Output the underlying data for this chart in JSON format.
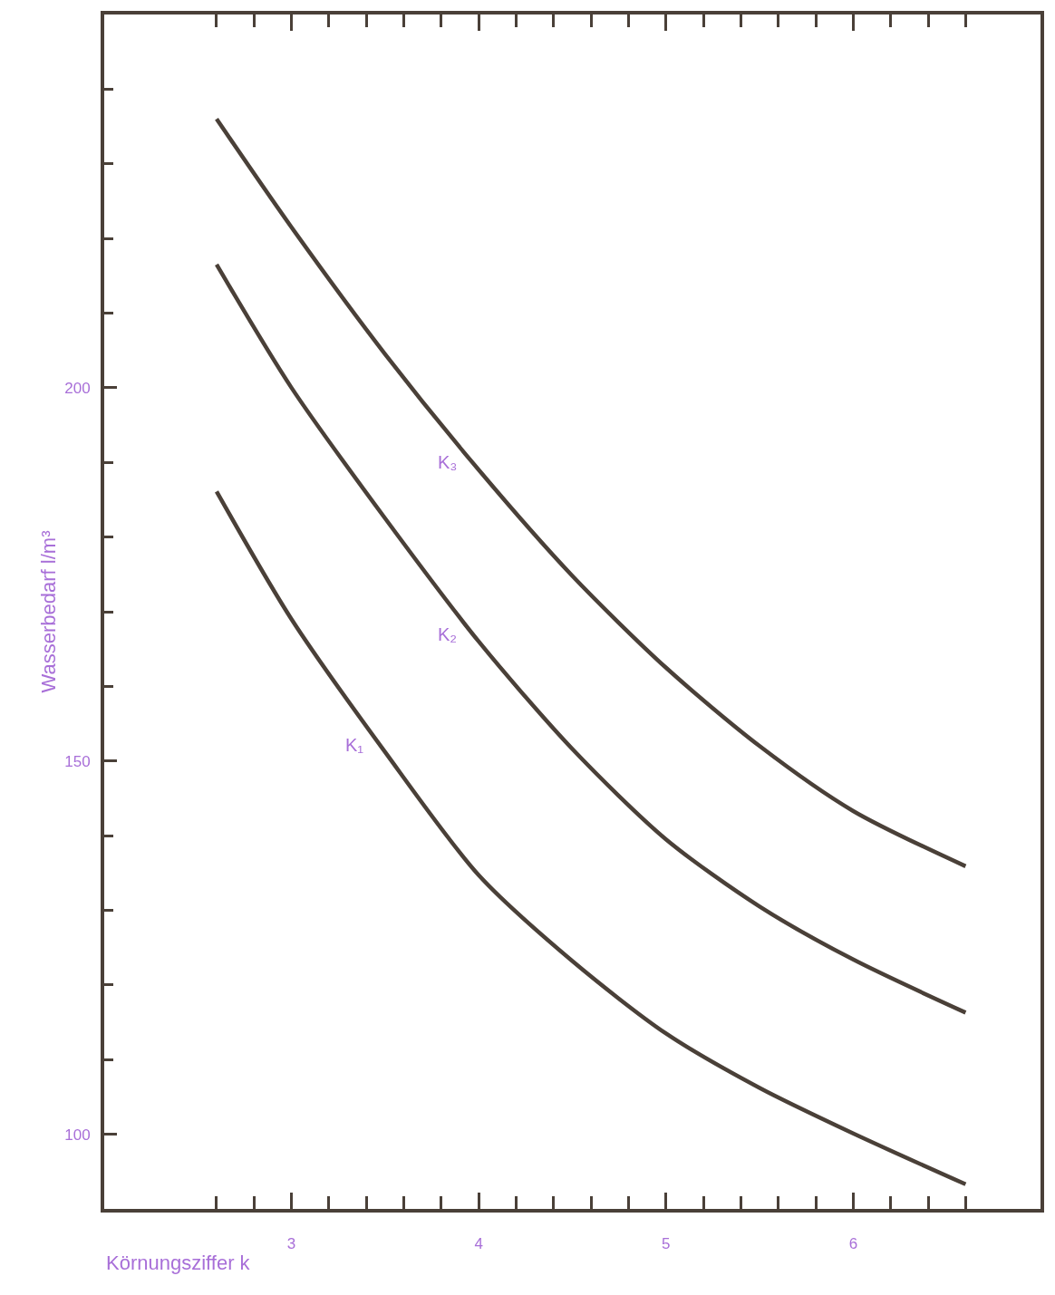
{
  "chart_data": {
    "type": "line",
    "xlabel": "Körnungsziffer k",
    "ylabel": "Wasserbedarf l/m³",
    "xlim": [
      2,
      7
    ],
    "ylim": [
      90,
      250
    ],
    "xticks": [
      {
        "value": 2.6,
        "label": null
      },
      {
        "value": 2.8,
        "label": null
      },
      3,
      {
        "value": 3.2,
        "label": null
      },
      {
        "value": 3.4,
        "label": null
      },
      {
        "value": 3.6,
        "label": null
      },
      {
        "value": 3.8,
        "label": null
      },
      4,
      {
        "value": 4.2,
        "label": null
      },
      {
        "value": 4.4,
        "label": null
      },
      {
        "value": 4.6,
        "label": null
      },
      {
        "value": 4.8,
        "label": null
      },
      5,
      {
        "value": 5.2,
        "label": null
      },
      {
        "value": 5.4,
        "label": null
      },
      {
        "value": 5.6,
        "label": null
      },
      {
        "value": 5.8,
        "label": null
      },
      6,
      {
        "value": 6.2,
        "label": null
      },
      {
        "value": 6.4,
        "label": null
      },
      {
        "value": 6.6,
        "label": null
      }
    ],
    "yticks": [
      100,
      {
        "value": 110,
        "label": null
      },
      {
        "value": 120,
        "label": null
      },
      {
        "value": 130,
        "label": null
      },
      {
        "value": 140,
        "label": null
      },
      150,
      {
        "value": 160,
        "label": null
      },
      {
        "value": 170,
        "label": null
      },
      {
        "value": 180,
        "label": null
      },
      {
        "value": 190,
        "label": null
      },
      200,
      {
        "value": 210,
        "label": null
      },
      {
        "value": 220,
        "label": null
      },
      {
        "value": 230,
        "label": null
      },
      {
        "value": 240,
        "label": null
      }
    ],
    "x": [
      2.6,
      3.0,
      3.5,
      4.0,
      4.5,
      5.0,
      5.5,
      6.0,
      6.6
    ],
    "series": [
      {
        "name": "K₁",
        "color": "#4a4038",
        "values": [
          186.1,
          169.0,
          151.2,
          134.7,
          123.2,
          113.5,
          106.2,
          100.1,
          93.3
        ]
      },
      {
        "name": "K₂",
        "color": "#4a4038",
        "values": [
          216.5,
          200.0,
          182.5,
          166.0,
          151.6,
          139.5,
          130.5,
          123.4,
          116.3
        ]
      },
      {
        "name": "K₃",
        "color": "#4a4038",
        "values": [
          236.0,
          221.5,
          204.5,
          189.0,
          174.8,
          162.5,
          152.0,
          143.3,
          135.9
        ]
      }
    ],
    "legend": false,
    "marker": "none",
    "line_style": "solid"
  }
}
